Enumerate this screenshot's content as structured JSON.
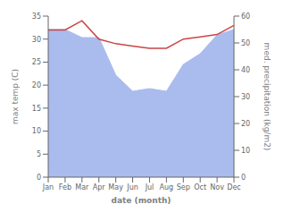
{
  "chart_data": {
    "type": "line",
    "categories": [
      "Jan",
      "Feb",
      "Mar",
      "Apr",
      "May",
      "Jun",
      "Jul",
      "Aug",
      "Sep",
      "Oct",
      "Nov",
      "Dec"
    ],
    "series": [
      {
        "type": "area",
        "axis": "y2",
        "color": "#aabbee",
        "values": [
          55.0,
          55.0,
          52.0,
          52.0,
          38.0,
          32.0,
          33.0,
          32.0,
          42.0,
          46.0,
          53.0,
          55.0
        ]
      },
      {
        "type": "line",
        "color": "#cc4444",
        "values": [
          32.0,
          32.0,
          34.0,
          30.0,
          29.0,
          28.5,
          28.0,
          28.0,
          30.0,
          30.5,
          31.0,
          33.0
        ]
      }
    ],
    "xlabel": "date (month)",
    "ylabel": "max temp (C)",
    "y2label": "med. precipitation (kg/m2)",
    "ylim": [
      0,
      35
    ],
    "yticks": [
      0,
      5,
      10,
      15,
      20,
      25,
      30,
      35
    ],
    "y2lim": [
      0,
      60
    ],
    "y2ticks": [
      0,
      10,
      20,
      30,
      40,
      50,
      60
    ],
    "grid": false
  }
}
